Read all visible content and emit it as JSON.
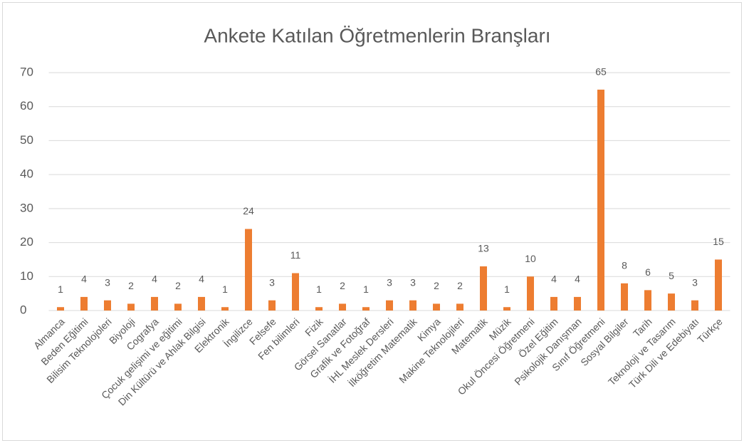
{
  "chart_data": {
    "type": "bar",
    "title": "Ankete Katılan Öğretmenlerin Branşları",
    "categories": [
      "Almanca",
      "Beden Eğitimi",
      "Bilisim Teknolojoleri",
      "Biyoloji",
      "Cografya",
      "Çocuk gelişimi ve eğitimi",
      "Din Kültürü ve Ahlak Bilgisi",
      "Elektronik",
      "İngilizce",
      "Felsefe",
      "Fen bilimleri",
      "Fizik",
      "Görsel Sanatlar",
      "Grafik ve Fotoğraf",
      "İHL Meslek Dersleri",
      "İlköğretim Matematik",
      "Kimya",
      "Makine Teknolojileri",
      "Matematik",
      "Müzik",
      "Okul Öncesi Öğretmeni",
      "Özel Eğitim",
      "Psikolojik Danışman",
      "Sınıf Öğretmeni",
      "Sosyal Bilgiler",
      "Tarih",
      "Teknoloji ve Tasarım",
      "Türk Dili ve Edebiyatı",
      "Türkçe"
    ],
    "values": [
      1,
      4,
      3,
      2,
      4,
      2,
      4,
      1,
      24,
      3,
      11,
      1,
      2,
      1,
      3,
      3,
      2,
      2,
      13,
      1,
      10,
      4,
      4,
      65,
      8,
      6,
      5,
      3,
      15
    ],
    "color": "#ed7d31",
    "ylim": [
      0,
      70
    ],
    "yticks": [
      0,
      10,
      20,
      30,
      40,
      50,
      60,
      70
    ],
    "grid": true
  }
}
